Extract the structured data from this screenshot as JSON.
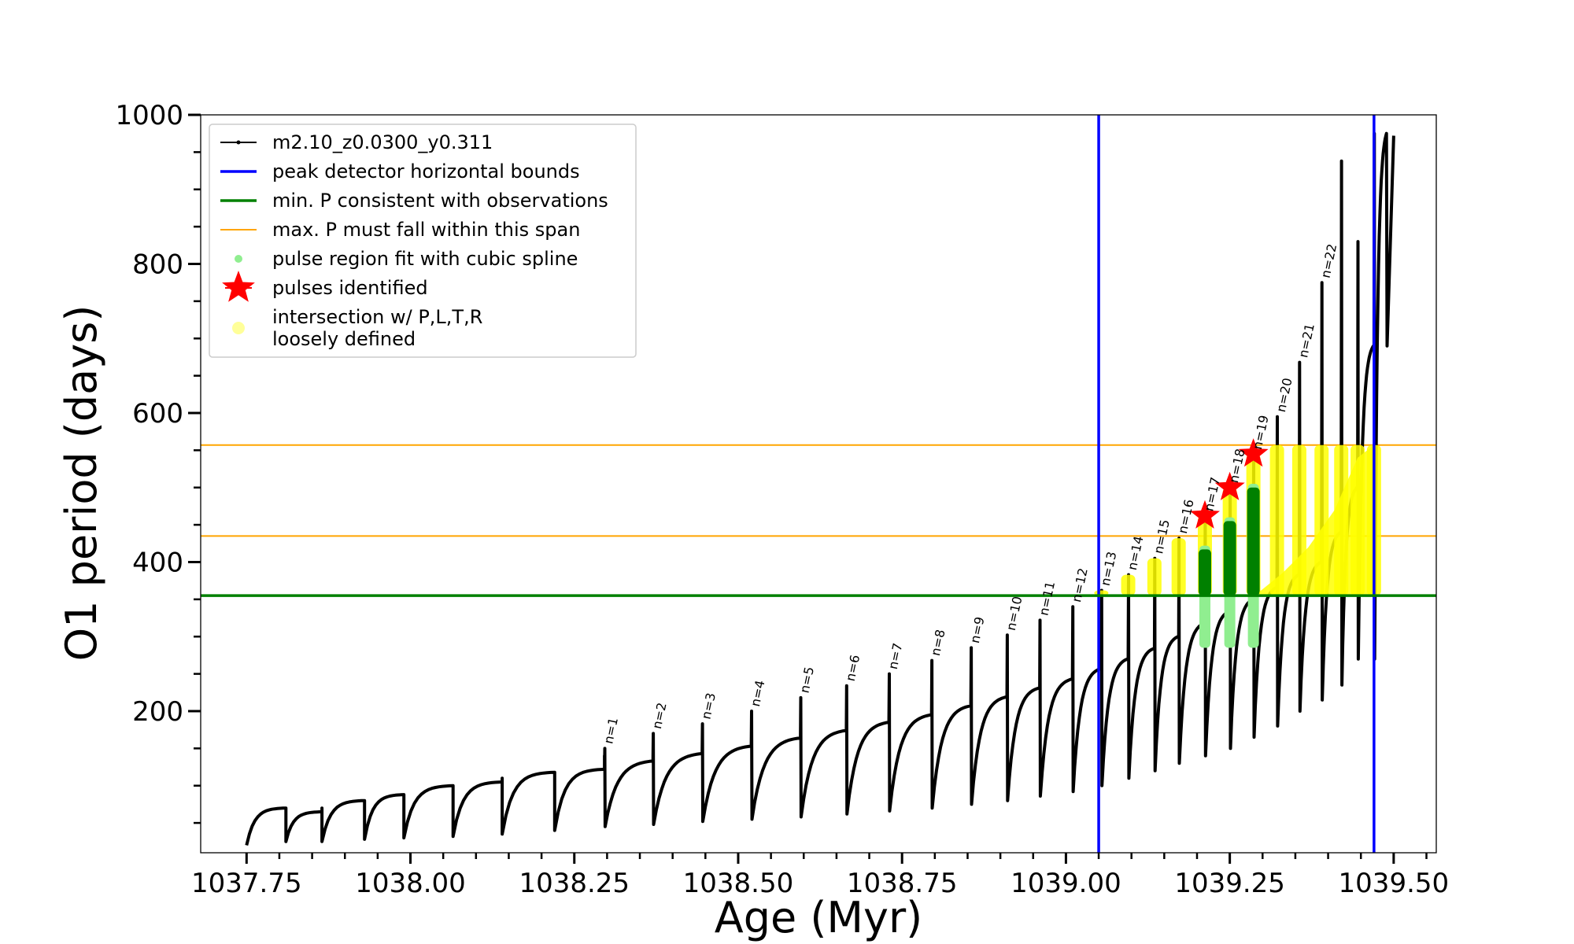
{
  "chart_data": {
    "type": "line",
    "xlabel": "Age (Myr)",
    "ylabel": "O1 period (days)",
    "xlim": [
      1037.68,
      1039.565
    ],
    "ylim": [
      10,
      1000
    ],
    "xticks": [
      1037.75,
      1038.0,
      1038.25,
      1038.5,
      1038.75,
      1039.0,
      1039.25,
      1039.5
    ],
    "xtick_labels": [
      "1037.75",
      "1038.00",
      "1038.25",
      "1038.50",
      "1038.75",
      "1039.00",
      "1039.25",
      "1039.50"
    ],
    "yticks": [
      200,
      400,
      600,
      800,
      1000
    ],
    "ytick_labels": [
      "200",
      "400",
      "600",
      "800",
      "1000"
    ],
    "grid": false,
    "legend_position": "top-left",
    "legend": [
      {
        "label": "m2.10_z0.0300_y0.311",
        "kind": "line-marker",
        "color": "#000000"
      },
      {
        "label": "peak detector horizontal bounds",
        "kind": "line",
        "color": "#0000ff"
      },
      {
        "label": "min. P consistent with observations",
        "kind": "line",
        "color": "#008000"
      },
      {
        "label": "max. P must fall within this span",
        "kind": "thin-line",
        "color": "#ffa500"
      },
      {
        "label": "pulse region fit with cubic spline",
        "kind": "dot",
        "color": "#90ee90"
      },
      {
        "label": "pulses identified",
        "kind": "star",
        "color": "#ff0000"
      },
      {
        "label_lines": [
          "intersection w/ P,L,T,R",
          "loosely defined"
        ],
        "kind": "dot",
        "color": "#ffff99"
      }
    ],
    "vertical_lines": {
      "color": "#0000ff",
      "x": [
        1039.05,
        1039.47
      ]
    },
    "min_period_line": {
      "color": "#008000",
      "y": 355
    },
    "max_period_span": {
      "color": "#ffa500",
      "y": [
        435,
        557
      ]
    },
    "pulses": [
      {
        "label": "n=1",
        "t": 1038.296,
        "base": 122,
        "peak": 150,
        "after": 45,
        "next": 1038.37
      },
      {
        "label": "n=2",
        "t": 1038.37,
        "base": 133,
        "peak": 170,
        "after": 48,
        "next": 1038.445
      },
      {
        "label": "n=3",
        "t": 1038.445,
        "base": 143,
        "peak": 183,
        "after": 52,
        "next": 1038.52
      },
      {
        "label": "n=4",
        "t": 1038.52,
        "base": 153,
        "peak": 200,
        "after": 55,
        "next": 1038.595
      },
      {
        "label": "n=5",
        "t": 1038.595,
        "base": 164,
        "peak": 218,
        "after": 58,
        "next": 1038.665
      },
      {
        "label": "n=6",
        "t": 1038.665,
        "base": 174,
        "peak": 234,
        "after": 62,
        "next": 1038.73
      },
      {
        "label": "n=7",
        "t": 1038.73,
        "base": 185,
        "peak": 250,
        "after": 66,
        "next": 1038.795
      },
      {
        "label": "n=8",
        "t": 1038.795,
        "base": 195,
        "peak": 268,
        "after": 70,
        "next": 1038.855
      },
      {
        "label": "n=9",
        "t": 1038.855,
        "base": 207,
        "peak": 285,
        "after": 75,
        "next": 1038.91
      },
      {
        "label": "n=10",
        "t": 1038.91,
        "base": 219,
        "peak": 302,
        "after": 80,
        "next": 1038.96
      },
      {
        "label": "n=11",
        "t": 1038.96,
        "base": 231,
        "peak": 322,
        "after": 86,
        "next": 1039.01
      },
      {
        "label": "n=12",
        "t": 1039.01,
        "base": 243,
        "peak": 340,
        "after": 92,
        "next": 1039.054
      },
      {
        "label": "n=13",
        "t": 1039.054,
        "base": 257,
        "peak": 362,
        "after": 100,
        "next": 1039.095
      },
      {
        "label": "n=14",
        "t": 1039.095,
        "base": 270,
        "peak": 383,
        "after": 110,
        "next": 1039.135
      },
      {
        "label": "n=15",
        "t": 1039.135,
        "base": 284,
        "peak": 405,
        "after": 120,
        "next": 1039.172
      },
      {
        "label": "n=16",
        "t": 1039.172,
        "base": 300,
        "peak": 432,
        "after": 130,
        "next": 1039.212
      },
      {
        "label": "n=17",
        "t": 1039.212,
        "base": 318,
        "peak": 462,
        "after": 140,
        "next": 1039.25
      },
      {
        "label": "n=18",
        "t": 1039.25,
        "base": 334,
        "peak": 500,
        "after": 150,
        "next": 1039.286
      },
      {
        "label": "n=19",
        "t": 1039.286,
        "base": 350,
        "peak": 545,
        "after": 165,
        "next": 1039.322
      },
      {
        "label": "n=20",
        "t": 1039.322,
        "base": 366,
        "peak": 595,
        "after": 180,
        "next": 1039.356
      },
      {
        "label": "n=21",
        "t": 1039.356,
        "base": 383,
        "peak": 668,
        "after": 200,
        "next": 1039.39
      },
      {
        "label": "n=22",
        "t": 1039.39,
        "base": 400,
        "peak": 775,
        "after": 215,
        "next": 1039.42
      },
      {
        "label": "",
        "t": 1039.42,
        "base": 440,
        "peak": 938,
        "after": 235,
        "next": 1039.445
      },
      {
        "label": "",
        "t": 1039.445,
        "base": 500,
        "peak": 830,
        "after": 270,
        "next": 1039.47
      },
      {
        "label": "",
        "t": 1039.47,
        "base": 690,
        "peak": 975,
        "after": 270,
        "next": 1039.49
      }
    ],
    "early_cycles": [
      {
        "t": 1037.75,
        "base": 30,
        "top": 70,
        "after": 20,
        "next": 1037.81
      },
      {
        "t": 1037.81,
        "base": 70,
        "top": 65,
        "after": 25,
        "next": 1037.865
      },
      {
        "t": 1037.865,
        "base": 65,
        "top": 80,
        "after": 25,
        "next": 1037.93
      },
      {
        "t": 1037.93,
        "base": 80,
        "top": 88,
        "after": 28,
        "next": 1037.99
      },
      {
        "t": 1037.99,
        "base": 88,
        "top": 100,
        "after": 30,
        "next": 1038.065
      },
      {
        "t": 1038.065,
        "base": 110,
        "top": 105,
        "after": 32,
        "next": 1038.14
      },
      {
        "t": 1038.14,
        "base": 105,
        "top": 118,
        "after": 35,
        "next": 1038.22
      },
      {
        "t": 1038.22,
        "base": 140,
        "top": 122,
        "after": 40,
        "next": 1038.296
      }
    ],
    "star_pulses": [
      1039.212,
      1039.25,
      1039.286
    ],
    "star_values": [
      462,
      500,
      545
    ]
  }
}
